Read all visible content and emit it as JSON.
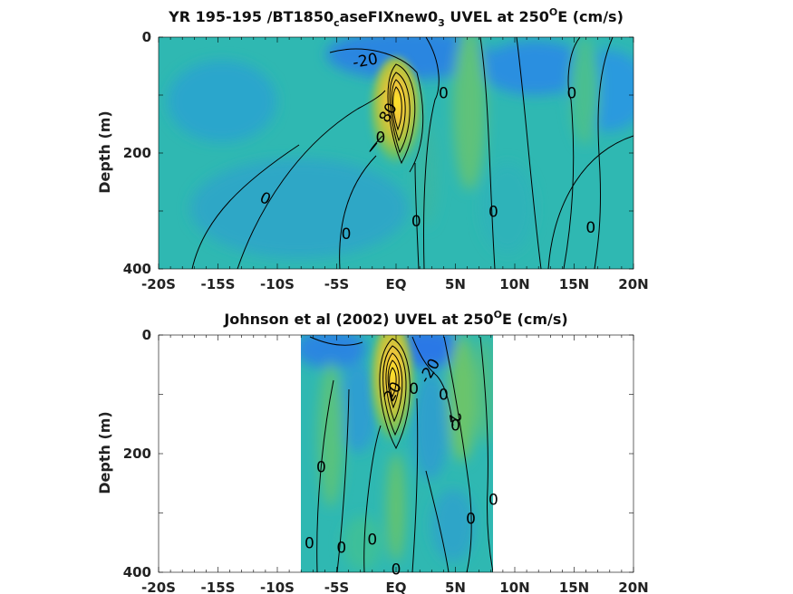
{
  "chart_data": [
    {
      "type": "heatmap",
      "title_main": "YR 195-195 /BT1850",
      "title_sub1": "c",
      "title_mid": "aseFIXnew0",
      "title_sub2": "3",
      "title_tail1": " UVEL at 250",
      "title_sup": "O",
      "title_tail2": "E (cm/s)",
      "xlabel": "",
      "ylabel": "Depth (m)",
      "x_ticks": [
        "-20S",
        "-15S",
        "-10S",
        "-5S",
        "EQ",
        "5N",
        "10N",
        "15N",
        "20N"
      ],
      "x_tick_values": [
        -20,
        -15,
        -10,
        -5,
        0,
        5,
        10,
        15,
        20
      ],
      "y_ticks": [
        "0",
        "200",
        "400"
      ],
      "y_tick_values": [
        0,
        200,
        400
      ],
      "xlim": [
        -20,
        20
      ],
      "ylim": [
        0,
        400
      ],
      "data_xlim": [
        -20,
        20
      ],
      "contour_labels": [
        {
          "text": "-20",
          "x": -2.6,
          "y": 40,
          "angle": -10
        },
        {
          "text": "0",
          "x": 4.0,
          "y": 96,
          "angle": 0
        },
        {
          "text": "0",
          "x": 14.8,
          "y": 96,
          "angle": 0
        },
        {
          "text": "0",
          "x": -11.0,
          "y": 278,
          "angle": 25
        },
        {
          "text": "0",
          "x": 1.7,
          "y": 317,
          "angle": 0
        },
        {
          "text": "0",
          "x": 8.2,
          "y": 301,
          "angle": 0
        },
        {
          "text": "0",
          "x": 16.4,
          "y": 328,
          "angle": 0
        },
        {
          "text": "0",
          "x": -4.2,
          "y": 339,
          "angle": 0
        },
        {
          "text": "0",
          "x": -1.3,
          "y": 173,
          "angle": 0
        },
        {
          "text": "80",
          "x": -0.7,
          "y": 130,
          "angle": -60
        }
      ],
      "jet_core": {
        "x": 0.3,
        "depth": 95,
        "max_cms": 100
      }
    },
    {
      "type": "heatmap",
      "title_main": "Johnson et al (2002) UVEL at 250",
      "title_sup": "O",
      "title_tail2": "E (cm/s)",
      "xlabel": "",
      "ylabel": "Depth (m)",
      "x_ticks": [
        "-20S",
        "-15S",
        "-10S",
        "-5S",
        "EQ",
        "5N",
        "10N",
        "15N",
        "20N"
      ],
      "x_tick_values": [
        -20,
        -15,
        -10,
        -5,
        0,
        5,
        10,
        15,
        20
      ],
      "y_ticks": [
        "0",
        "200",
        "400"
      ],
      "y_tick_values": [
        0,
        200,
        400
      ],
      "xlim": [
        -20,
        20
      ],
      "ylim": [
        0,
        400
      ],
      "data_xlim": [
        -8,
        8.3
      ],
      "contour_labels": [
        {
          "text": "-20",
          "x": 2.8,
          "y": 60,
          "angle": -60
        },
        {
          "text": "20",
          "x": -0.3,
          "y": 95,
          "angle": -60
        },
        {
          "text": "0",
          "x": 1.5,
          "y": 90,
          "angle": 0
        },
        {
          "text": "0",
          "x": 4.0,
          "y": 100,
          "angle": 0
        },
        {
          "text": "2",
          "x": 5.0,
          "y": 140,
          "angle": 80
        },
        {
          "text": "0",
          "x": 5.0,
          "y": 152,
          "angle": 0
        },
        {
          "text": "0",
          "x": -6.3,
          "y": 222,
          "angle": 0
        },
        {
          "text": "0",
          "x": 8.2,
          "y": 277,
          "angle": 0
        },
        {
          "text": "0",
          "x": 6.3,
          "y": 309,
          "angle": 0
        },
        {
          "text": "0",
          "x": -7.3,
          "y": 350,
          "angle": 0
        },
        {
          "text": "0",
          "x": -4.6,
          "y": 358,
          "angle": 0
        },
        {
          "text": "0",
          "x": -2.0,
          "y": 344,
          "angle": 0
        },
        {
          "text": "0",
          "x": 0.0,
          "y": 395,
          "angle": 0
        }
      ],
      "jet_core": {
        "x": 0.1,
        "depth": 70,
        "max_cms": 100
      }
    }
  ],
  "colors": {
    "background_field": "#2fb8b2",
    "negative": "#2f86e6",
    "positive_core": "#fbe82c",
    "contour": "#000000"
  }
}
